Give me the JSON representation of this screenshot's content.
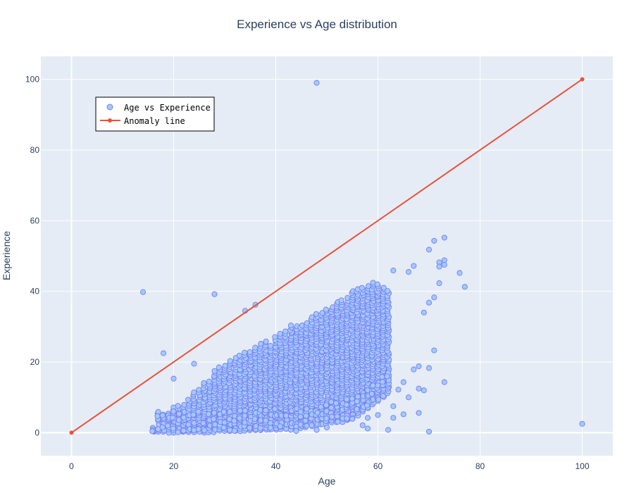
{
  "colors": {
    "plot_bg": "#e5ecf6",
    "grid": "#ffffff",
    "scatter_fill": "#9ecbff",
    "scatter_edge": "#7e7cf0",
    "line": "#e8533b",
    "text": "#2a3f5f"
  },
  "chart_data": {
    "type": "scatter",
    "title": "Experience vs Age distribution",
    "xlabel": "Age",
    "ylabel": "Experience",
    "xlim": [
      -6,
      106
    ],
    "ylim": [
      -6.5,
      106.5
    ],
    "x_ticks": [
      0,
      20,
      40,
      60,
      80,
      100
    ],
    "y_ticks": [
      0,
      20,
      40,
      60,
      80,
      100
    ],
    "grid": true,
    "legend": {
      "placement": "top-left",
      "entries": [
        "Age vs Experience",
        "Anomaly line"
      ]
    },
    "series": [
      {
        "name": "Age vs Experience",
        "mode": "markers",
        "cluster_note_omitted": true,
        "outliers": [
          [
            48,
            99
          ],
          [
            14,
            39.8
          ],
          [
            28,
            39.2
          ],
          [
            18,
            22.5
          ],
          [
            20,
            15.3
          ],
          [
            24,
            19.5
          ],
          [
            34,
            34.5
          ],
          [
            36,
            36.2
          ],
          [
            63,
            45.9
          ],
          [
            66,
            45.5
          ],
          [
            67,
            47.2
          ],
          [
            70,
            51.8
          ],
          [
            71,
            54.3
          ],
          [
            73,
            55.2
          ],
          [
            72,
            48.2
          ],
          [
            73,
            48.8
          ],
          [
            72,
            47
          ],
          [
            73,
            47.5
          ],
          [
            76,
            45.2
          ],
          [
            77,
            41.3
          ],
          [
            72,
            42.3
          ],
          [
            71,
            38.3
          ],
          [
            70,
            36.8
          ],
          [
            69,
            34
          ],
          [
            71,
            23.3
          ],
          [
            70,
            18.3
          ],
          [
            68,
            18.8
          ],
          [
            67,
            17.9
          ],
          [
            69,
            12
          ],
          [
            68,
            12.5
          ],
          [
            73,
            14.3
          ],
          [
            65,
            14.3
          ],
          [
            64,
            12.2
          ],
          [
            66,
            10
          ],
          [
            63,
            7.5
          ],
          [
            68,
            5.6
          ],
          [
            65,
            5.2
          ],
          [
            63,
            4.2
          ],
          [
            60,
            5
          ],
          [
            58,
            1.2
          ],
          [
            57,
            2.1
          ],
          [
            70,
            0.3
          ],
          [
            100,
            2.5
          ],
          [
            58,
            4.2
          ],
          [
            55,
            3.9
          ],
          [
            50,
            1.5
          ],
          [
            48,
            0.8
          ],
          [
            44,
            0.5
          ],
          [
            62,
            0.8
          ]
        ],
        "cluster": [
          {
            "x": 16,
            "ymin": 0.3,
            "ymax": 1.2
          },
          {
            "x": 17,
            "ymin": 0.2,
            "ymax": 6
          },
          {
            "x": 18,
            "ymin": 0.1,
            "ymax": 5
          },
          {
            "x": 19,
            "ymin": 0.1,
            "ymax": 5.5
          },
          {
            "x": 20,
            "ymin": 0.1,
            "ymax": 7
          },
          {
            "x": 21,
            "ymin": 0.1,
            "ymax": 7.5
          },
          {
            "x": 22,
            "ymin": 0.1,
            "ymax": 8
          },
          {
            "x": 23,
            "ymin": 0.1,
            "ymax": 9.5
          },
          {
            "x": 24,
            "ymin": 0.1,
            "ymax": 11.5
          },
          {
            "x": 25,
            "ymin": 0.1,
            "ymax": 12
          },
          {
            "x": 26,
            "ymin": 0.2,
            "ymax": 14
          },
          {
            "x": 27,
            "ymin": 0.2,
            "ymax": 14.5
          },
          {
            "x": 28,
            "ymin": 0.3,
            "ymax": 17.5
          },
          {
            "x": 29,
            "ymin": 0.4,
            "ymax": 18.5
          },
          {
            "x": 30,
            "ymin": 0.4,
            "ymax": 19
          },
          {
            "x": 31,
            "ymin": 0.5,
            "ymax": 20.5
          },
          {
            "x": 32,
            "ymin": 0.5,
            "ymax": 21
          },
          {
            "x": 33,
            "ymin": 0.5,
            "ymax": 22
          },
          {
            "x": 34,
            "ymin": 0.6,
            "ymax": 22.5
          },
          {
            "x": 35,
            "ymin": 0.6,
            "ymax": 23
          },
          {
            "x": 36,
            "ymin": 0.7,
            "ymax": 24
          },
          {
            "x": 37,
            "ymin": 0.7,
            "ymax": 25
          },
          {
            "x": 38,
            "ymin": 0.7,
            "ymax": 26
          },
          {
            "x": 39,
            "ymin": 0.8,
            "ymax": 24.5
          },
          {
            "x": 40,
            "ymin": 0.8,
            "ymax": 27
          },
          {
            "x": 41,
            "ymin": 0.8,
            "ymax": 28
          },
          {
            "x": 42,
            "ymin": 0.9,
            "ymax": 28.5
          },
          {
            "x": 43,
            "ymin": 1,
            "ymax": 30.5
          },
          {
            "x": 44,
            "ymin": 1,
            "ymax": 30
          },
          {
            "x": 45,
            "ymin": 1.2,
            "ymax": 30.5
          },
          {
            "x": 46,
            "ymin": 1.5,
            "ymax": 31
          },
          {
            "x": 47,
            "ymin": 1.8,
            "ymax": 32.5
          },
          {
            "x": 48,
            "ymin": 2,
            "ymax": 33.5
          },
          {
            "x": 49,
            "ymin": 2.3,
            "ymax": 34
          },
          {
            "x": 50,
            "ymin": 2.5,
            "ymax": 35
          },
          {
            "x": 51,
            "ymin": 2.8,
            "ymax": 35.5
          },
          {
            "x": 52,
            "ymin": 3,
            "ymax": 37
          },
          {
            "x": 53,
            "ymin": 3.2,
            "ymax": 37.5
          },
          {
            "x": 54,
            "ymin": 3.5,
            "ymax": 38
          },
          {
            "x": 55,
            "ymin": 4,
            "ymax": 40
          },
          {
            "x": 56,
            "ymin": 5,
            "ymax": 40.5
          },
          {
            "x": 57,
            "ymin": 6,
            "ymax": 41
          },
          {
            "x": 58,
            "ymin": 7,
            "ymax": 41.5
          },
          {
            "x": 59,
            "ymin": 8,
            "ymax": 42.5
          },
          {
            "x": 60,
            "ymin": 9,
            "ymax": 42
          },
          {
            "x": 61,
            "ymin": 10,
            "ymax": 41
          },
          {
            "x": 62,
            "ymin": 11,
            "ymax": 40
          }
        ]
      },
      {
        "name": "Anomaly line",
        "mode": "lines+markers",
        "x": [
          0,
          100
        ],
        "y": [
          0,
          100
        ]
      }
    ]
  }
}
